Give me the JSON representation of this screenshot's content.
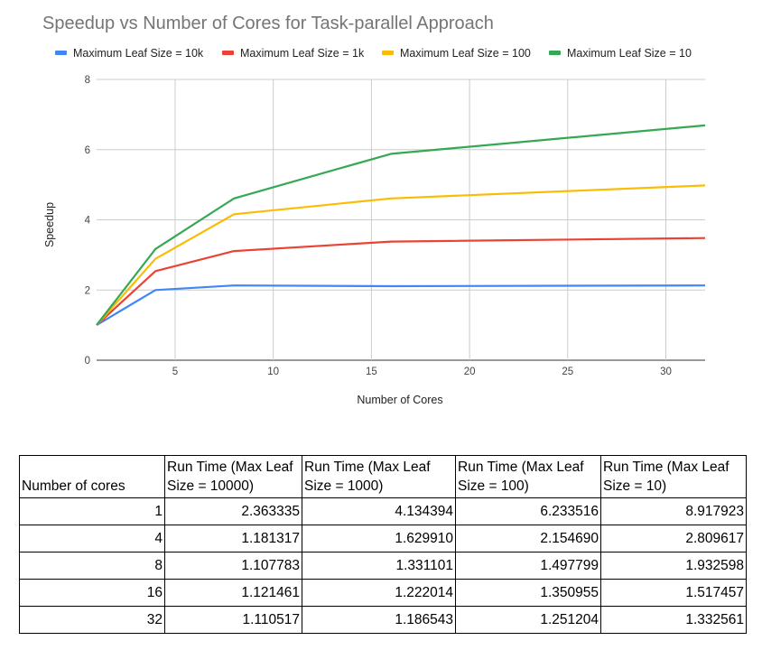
{
  "chart_data": {
    "type": "line",
    "title": "Speedup vs Number of Cores for Task-parallel Approach",
    "xlabel": "Number of Cores",
    "ylabel": "Speedup",
    "x": [
      1,
      4,
      8,
      16,
      32
    ],
    "xlim": [
      1,
      32
    ],
    "ylim": [
      0,
      8
    ],
    "xticks": [
      5,
      10,
      15,
      20,
      25,
      30
    ],
    "yticks": [
      0,
      2,
      4,
      6,
      8
    ],
    "grid": true,
    "legend_position": "top",
    "series": [
      {
        "name": "Maximum Leaf Size = 10k",
        "color": "#4285f4",
        "values": [
          1,
          2.0,
          2.13,
          2.11,
          2.13
        ]
      },
      {
        "name": "Maximum Leaf Size = 1k",
        "color": "#ea4335",
        "values": [
          1,
          2.54,
          3.11,
          3.38,
          3.48
        ]
      },
      {
        "name": "Maximum Leaf Size = 100",
        "color": "#fbbc04",
        "values": [
          1,
          2.89,
          4.16,
          4.61,
          4.98
        ]
      },
      {
        "name": "Maximum Leaf Size = 10",
        "color": "#34a853",
        "values": [
          1,
          3.17,
          4.61,
          5.88,
          6.69
        ]
      }
    ]
  },
  "table": {
    "headers": [
      "Number of cores",
      "Run Time (Max Leaf Size = 10000)",
      "Run Time (Max Leaf Size = 1000)",
      "Run Time (Max Leaf Size = 100)",
      "Run Time (Max Leaf Size = 10)"
    ],
    "rows": [
      [
        "1",
        "2.363335",
        "4.134394",
        "6.233516",
        "8.917923"
      ],
      [
        "4",
        "1.181317",
        "1.629910",
        "2.154690",
        "2.809617"
      ],
      [
        "8",
        "1.107783",
        "1.331101",
        "1.497799",
        "1.932598"
      ],
      [
        "16",
        "1.121461",
        "1.222014",
        "1.350955",
        "1.517457"
      ],
      [
        "32",
        "1.110517",
        "1.186543",
        "1.251204",
        "1.332561"
      ]
    ]
  }
}
